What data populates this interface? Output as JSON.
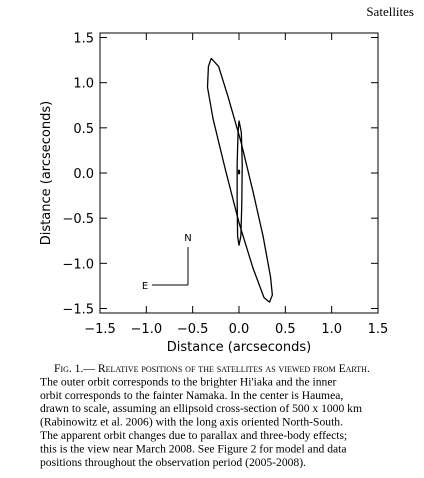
{
  "header": "Satellites",
  "chart_data": {
    "type": "line",
    "xlabel": "Distance (arcseconds)",
    "ylabel": "Distance (arcseconds)",
    "xlim": [
      -1.5,
      1.5
    ],
    "ylim": [
      -1.55,
      1.55
    ],
    "xticks": [
      {
        "value": -1.5,
        "label": "−1.5"
      },
      {
        "value": -1,
        "label": "−1.0"
      },
      {
        "value": -0.5,
        "label": "−0.5"
      },
      {
        "value": 0,
        "label": "0.0"
      },
      0.5,
      {
        "value": 1,
        "label": "1.0"
      },
      1.5
    ],
    "yticks": [
      {
        "value": -1.5,
        "label": "−1.5"
      },
      {
        "value": -1,
        "label": "−1.0"
      },
      {
        "value": -0.5,
        "label": "−0.5"
      },
      {
        "value": 0,
        "label": "0.0"
      },
      0.5,
      {
        "value": 1,
        "label": "1.0"
      },
      1.5
    ],
    "series": [
      {
        "color": "#000000",
        "x": [
          -0.3,
          -0.22,
          -0.12,
          0.02,
          0.15,
          0.26,
          0.34,
          0.36,
          0.33,
          0.27,
          0.15,
          0.0,
          -0.15,
          -0.28,
          -0.34,
          -0.33,
          -0.3
        ],
        "y": [
          1.27,
          1.18,
          0.85,
          0.35,
          -0.2,
          -0.7,
          -1.15,
          -1.35,
          -1.43,
          -1.38,
          -1.05,
          -0.55,
          0.05,
          0.6,
          0.95,
          1.18,
          1.27
        ]
      },
      {
        "color": "#000000",
        "x": [
          0.0,
          0.025,
          0.035,
          0.03,
          0.02,
          0.0,
          -0.015,
          -0.02,
          -0.02,
          -0.01,
          0.0
        ],
        "y": [
          0.58,
          0.45,
          0.1,
          -0.35,
          -0.7,
          -0.8,
          -0.7,
          -0.3,
          0.1,
          0.45,
          0.58
        ]
      }
    ],
    "annotations": [
      "N",
      "E"
    ]
  },
  "caption": [
    "Fig. 1.— Relative positions of the satellites as viewed from Earth.",
    "The outer orbit corresponds to the brighter Hi'iaka and the inner",
    "orbit corresponds to the fainter Namaka. In the center is Haumea,",
    "drawn to scale, assuming an ellipsoid cross-section of 500 x 1000 km",
    "(Rabinowitz et al. 2006) with the long axis oriented North-South.",
    "The apparent orbit changes due to parallax and three-body effects;",
    "this is the view near March 2008. See Figure 2 for model and data",
    "positions throughout the observation period (2005-2008)."
  ]
}
